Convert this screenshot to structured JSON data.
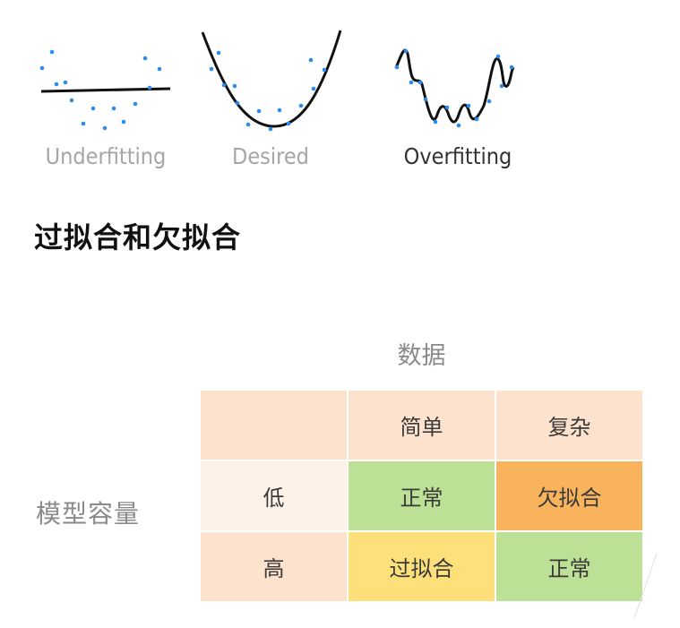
{
  "fitting_examples": [
    {
      "label": "Underfitting",
      "label_color": "#a6a6a6"
    },
    {
      "label": "Desired",
      "label_color": "#a6a6a6"
    },
    {
      "label": "Overfitting",
      "label_color": "#333333"
    }
  ],
  "point_color": "#2b8cf0",
  "curve_color": "#111111",
  "section_title": "过拟合和欠拟合",
  "matrix": {
    "column_group_label": "数据",
    "row_group_label": "模型容量",
    "column_headers": [
      "简单",
      "复杂"
    ],
    "rows": [
      {
        "header": "低",
        "cells": [
          "正常",
          "欠拟合"
        ]
      },
      {
        "header": "高",
        "cells": [
          "过拟合",
          "正常"
        ]
      }
    ],
    "colors": {
      "header_bg": "#fde3cd",
      "low_header_bg": "#fef2e8",
      "normal": "#bde097",
      "underfit": "#f9b35c",
      "overfit": "#fde07a"
    }
  }
}
